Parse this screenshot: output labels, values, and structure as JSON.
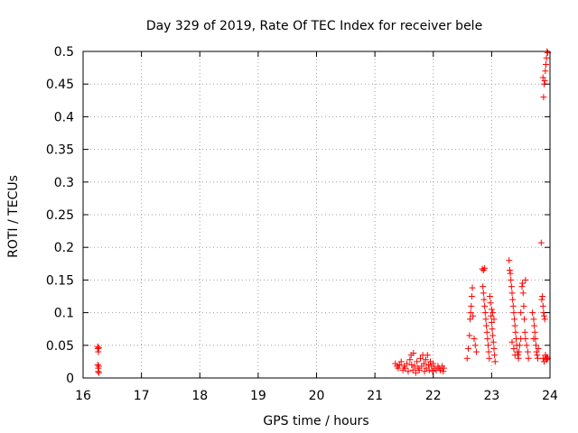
{
  "chart_data": {
    "type": "scatter",
    "title": "Day 329 of 2019, Rate Of TEC Index for receiver bele",
    "xlabel": "GPS time / hours",
    "ylabel": "ROTI / TECUs",
    "xlim": [
      16,
      24
    ],
    "ylim": [
      0,
      0.5
    ],
    "grid": true,
    "marker": "+",
    "point_color": "#ff0000",
    "x_ticks": [
      16,
      17,
      18,
      19,
      20,
      21,
      22,
      23,
      24
    ],
    "y_ticks": [
      0,
      0.05,
      0.1,
      0.15,
      0.2,
      0.25,
      0.3,
      0.35,
      0.4,
      0.45,
      0.5
    ],
    "x_tick_labels": [
      "16",
      "17",
      "18",
      "19",
      "20",
      "21",
      "22",
      "23",
      "24"
    ],
    "y_tick_labels": [
      "0",
      "0.05",
      "0.1",
      "0.15",
      "0.2",
      "0.25",
      "0.3",
      "0.35",
      "0.4",
      "0.45",
      "0.5"
    ],
    "series": [
      {
        "name": "ROTI",
        "points": [
          [
            16.25,
            0.048
          ],
          [
            16.25,
            0.045
          ],
          [
            16.26,
            0.04
          ],
          [
            16.27,
            0.046
          ],
          [
            16.25,
            0.02
          ],
          [
            16.26,
            0.015
          ],
          [
            16.27,
            0.018
          ],
          [
            16.26,
            0.01
          ],
          [
            16.27,
            0.008
          ],
          [
            21.35,
            0.022
          ],
          [
            21.38,
            0.018
          ],
          [
            21.4,
            0.015
          ],
          [
            21.42,
            0.02
          ],
          [
            21.45,
            0.025
          ],
          [
            21.48,
            0.012
          ],
          [
            21.5,
            0.018
          ],
          [
            21.52,
            0.015
          ],
          [
            21.55,
            0.022
          ],
          [
            21.57,
            0.01
          ],
          [
            21.6,
            0.028
          ],
          [
            21.62,
            0.035
          ],
          [
            21.63,
            0.02
          ],
          [
            21.65,
            0.012
          ],
          [
            21.66,
            0.038
          ],
          [
            21.68,
            0.018
          ],
          [
            21.7,
            0.008
          ],
          [
            21.72,
            0.025
          ],
          [
            21.74,
            0.015
          ],
          [
            21.76,
            0.012
          ],
          [
            21.78,
            0.03
          ],
          [
            21.8,
            0.018
          ],
          [
            21.82,
            0.035
          ],
          [
            21.84,
            0.022
          ],
          [
            21.85,
            0.01
          ],
          [
            21.87,
            0.028
          ],
          [
            21.88,
            0.015
          ],
          [
            21.9,
            0.035
          ],
          [
            21.92,
            0.02
          ],
          [
            21.93,
            0.012
          ],
          [
            21.95,
            0.025
          ],
          [
            21.97,
            0.018
          ],
          [
            21.99,
            0.01
          ],
          [
            22.0,
            0.022
          ],
          [
            22.02,
            0.015
          ],
          [
            22.05,
            0.012
          ],
          [
            22.08,
            0.018
          ],
          [
            22.1,
            0.015
          ],
          [
            22.12,
            0.012
          ],
          [
            22.15,
            0.018
          ],
          [
            22.17,
            0.01
          ],
          [
            22.18,
            0.015
          ],
          [
            22.58,
            0.03
          ],
          [
            22.6,
            0.045
          ],
          [
            22.62,
            0.065
          ],
          [
            22.63,
            0.09
          ],
          [
            22.64,
            0.1
          ],
          [
            22.65,
            0.11
          ],
          [
            22.66,
            0.125
          ],
          [
            22.67,
            0.138
          ],
          [
            22.68,
            0.095
          ],
          [
            22.7,
            0.06
          ],
          [
            22.72,
            0.05
          ],
          [
            22.74,
            0.04
          ],
          [
            22.84,
            0.167
          ],
          [
            22.86,
            0.165
          ],
          [
            22.88,
            0.168
          ],
          [
            22.85,
            0.14
          ],
          [
            22.86,
            0.13
          ],
          [
            22.87,
            0.12
          ],
          [
            22.88,
            0.11
          ],
          [
            22.89,
            0.1
          ],
          [
            22.9,
            0.09
          ],
          [
            22.91,
            0.08
          ],
          [
            22.92,
            0.07
          ],
          [
            22.93,
            0.06
          ],
          [
            22.94,
            0.05
          ],
          [
            22.95,
            0.04
          ],
          [
            22.96,
            0.03
          ],
          [
            22.97,
            0.125
          ],
          [
            22.98,
            0.115
          ],
          [
            22.99,
            0.095
          ],
          [
            23.0,
            0.085
          ],
          [
            23.01,
            0.075
          ],
          [
            23.02,
            0.065
          ],
          [
            23.03,
            0.055
          ],
          [
            23.04,
            0.045
          ],
          [
            23.05,
            0.035
          ],
          [
            23.06,
            0.025
          ],
          [
            23.0,
            0.105
          ],
          [
            23.02,
            0.1
          ],
          [
            23.04,
            0.09
          ],
          [
            23.3,
            0.18
          ],
          [
            23.31,
            0.165
          ],
          [
            23.32,
            0.16
          ],
          [
            23.33,
            0.15
          ],
          [
            23.34,
            0.14
          ],
          [
            23.35,
            0.13
          ],
          [
            23.36,
            0.12
          ],
          [
            23.37,
            0.11
          ],
          [
            23.38,
            0.1
          ],
          [
            23.39,
            0.09
          ],
          [
            23.4,
            0.08
          ],
          [
            23.41,
            0.07
          ],
          [
            23.42,
            0.06
          ],
          [
            23.43,
            0.05
          ],
          [
            23.44,
            0.04
          ],
          [
            23.45,
            0.035
          ],
          [
            23.46,
            0.03
          ],
          [
            23.47,
            0.04
          ],
          [
            23.48,
            0.05
          ],
          [
            23.5,
            0.06
          ],
          [
            23.52,
            0.14
          ],
          [
            23.53,
            0.145
          ],
          [
            23.54,
            0.13
          ],
          [
            23.55,
            0.11
          ],
          [
            23.56,
            0.09
          ],
          [
            23.57,
            0.07
          ],
          [
            23.58,
            0.06
          ],
          [
            23.6,
            0.05
          ],
          [
            23.62,
            0.04
          ],
          [
            23.63,
            0.03
          ],
          [
            23.35,
            0.055
          ],
          [
            23.38,
            0.045
          ],
          [
            23.4,
            0.035
          ],
          [
            23.5,
            0.1
          ],
          [
            23.58,
            0.15
          ],
          [
            23.7,
            0.1
          ],
          [
            23.72,
            0.09
          ],
          [
            23.73,
            0.08
          ],
          [
            23.74,
            0.07
          ],
          [
            23.75,
            0.06
          ],
          [
            23.76,
            0.05
          ],
          [
            23.77,
            0.04
          ],
          [
            23.78,
            0.035
          ],
          [
            23.79,
            0.03
          ],
          [
            23.8,
            0.045
          ],
          [
            23.72,
            0.06
          ],
          [
            23.85,
            0.207
          ],
          [
            23.86,
            0.12
          ],
          [
            23.87,
            0.125
          ],
          [
            23.88,
            0.11
          ],
          [
            23.89,
            0.1
          ],
          [
            23.9,
            0.095
          ],
          [
            23.91,
            0.09
          ],
          [
            23.92,
            0.035
          ],
          [
            23.93,
            0.03
          ],
          [
            23.94,
            0.028
          ],
          [
            23.95,
            0.032
          ],
          [
            23.96,
            0.03
          ],
          [
            23.88,
            0.03
          ],
          [
            23.9,
            0.025
          ],
          [
            23.88,
            0.46
          ],
          [
            23.89,
            0.43
          ],
          [
            23.9,
            0.45
          ],
          [
            23.92,
            0.47
          ],
          [
            23.93,
            0.48
          ],
          [
            23.94,
            0.49
          ],
          [
            23.95,
            0.5
          ],
          [
            23.96,
            0.498
          ],
          [
            23.91,
            0.455
          ]
        ]
      }
    ]
  }
}
